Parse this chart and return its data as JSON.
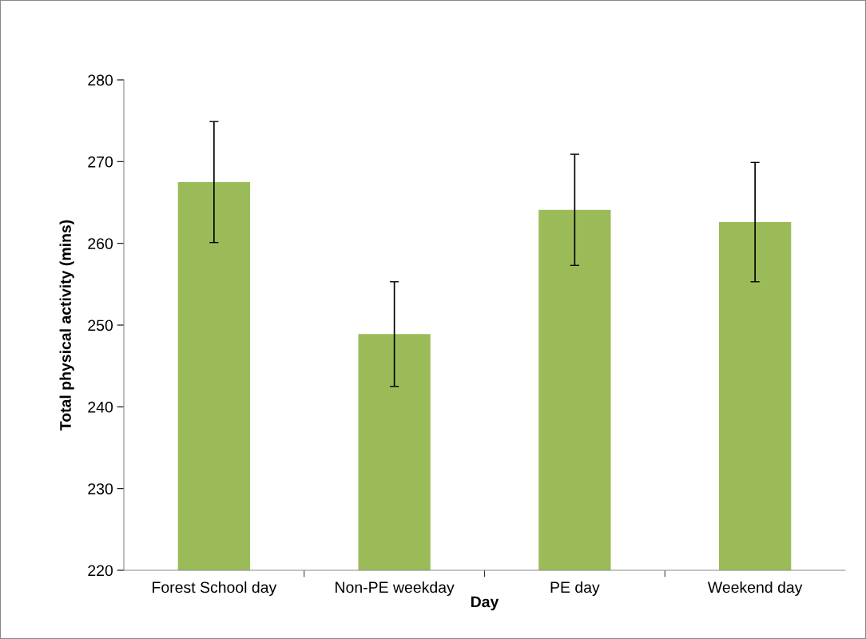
{
  "chart_data": {
    "type": "bar",
    "xlabel": "Day",
    "ylabel": "Total physical activity (mins)",
    "categories": [
      "Forest School day",
      "Non-PE weekday",
      "PE day",
      "Weekend day"
    ],
    "values": [
      267.5,
      248.9,
      264.1,
      262.6
    ],
    "errors": [
      7.4,
      6.4,
      6.8,
      7.3
    ],
    "color": "#9bbb59",
    "ylim": [
      220,
      280
    ],
    "yticks": [
      220,
      230,
      240,
      250,
      260,
      270,
      280
    ],
    "grid": false,
    "legend": false
  }
}
